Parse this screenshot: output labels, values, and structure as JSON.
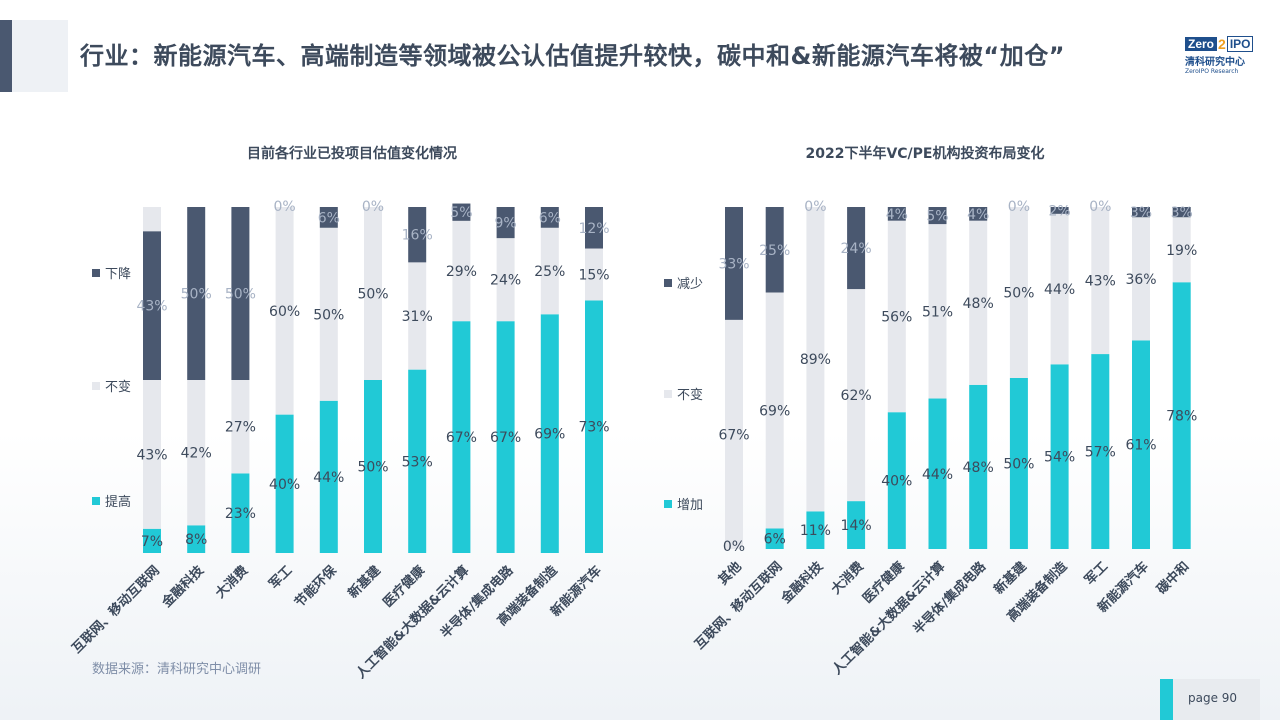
{
  "header": {
    "title": "行业：新能源汽车、高端制造等领域被公认估值提升较快，碳中和&新能源汽车将被“加仓”"
  },
  "logo": {
    "brand_left": "Zero",
    "brand_mid": "2",
    "brand_right": "IPO",
    "cn": "清科研究中心",
    "en": "ZeroIPO Research"
  },
  "footer": {
    "source": "数据来源：清科研究中心调研",
    "page": "page 90"
  },
  "colors": {
    "up": "#21c9d6",
    "same": "#e6e8ed",
    "down": "#4a5870",
    "title": "#3d4a5c"
  },
  "chart_data": [
    {
      "type": "bar",
      "stacked": true,
      "title": "目前各行业已投项目估值变化情况",
      "categories": [
        "互联网、移动互联网",
        "金融科技",
        "大消费",
        "军工",
        "节能环保",
        "新基建",
        "医疗健康",
        "人工智能&大数据&云计算",
        "半导体/集成电路",
        "高端装备制造",
        "新能源汽车"
      ],
      "series": [
        {
          "name": "提高",
          "values": [
            7,
            8,
            23,
            40,
            44,
            50,
            53,
            67,
            67,
            69,
            73
          ]
        },
        {
          "name": "不变",
          "values": [
            43,
            42,
            27,
            60,
            50,
            50,
            31,
            29,
            24,
            25,
            15
          ]
        },
        {
          "name": "下降",
          "values": [
            43,
            50,
            50,
            0,
            6,
            0,
            16,
            5,
            9,
            6,
            12
          ]
        }
      ],
      "ylim": [
        0,
        100
      ],
      "legend": "left"
    },
    {
      "type": "bar",
      "stacked": true,
      "title": "2022下半年VC/PE机构投资布局变化",
      "categories": [
        "其他",
        "互联网、移动互联网",
        "金融科技",
        "大消费",
        "医疗健康",
        "人工智能&大数据&云计算",
        "半导体/集成电路",
        "新基建",
        "高端装备制造",
        "军工",
        "新能源汽车",
        "碳中和"
      ],
      "series": [
        {
          "name": "增加",
          "values": [
            0,
            6,
            11,
            14,
            40,
            44,
            48,
            50,
            54,
            57,
            61,
            78
          ]
        },
        {
          "name": "不变",
          "values": [
            67,
            69,
            89,
            62,
            56,
            51,
            48,
            50,
            44,
            43,
            36,
            19
          ]
        },
        {
          "name": "减少",
          "values": [
            33,
            25,
            0,
            24,
            4,
            5,
            4,
            0,
            2,
            0,
            3,
            3
          ]
        }
      ],
      "ylim": [
        0,
        100
      ],
      "legend": "left"
    }
  ]
}
